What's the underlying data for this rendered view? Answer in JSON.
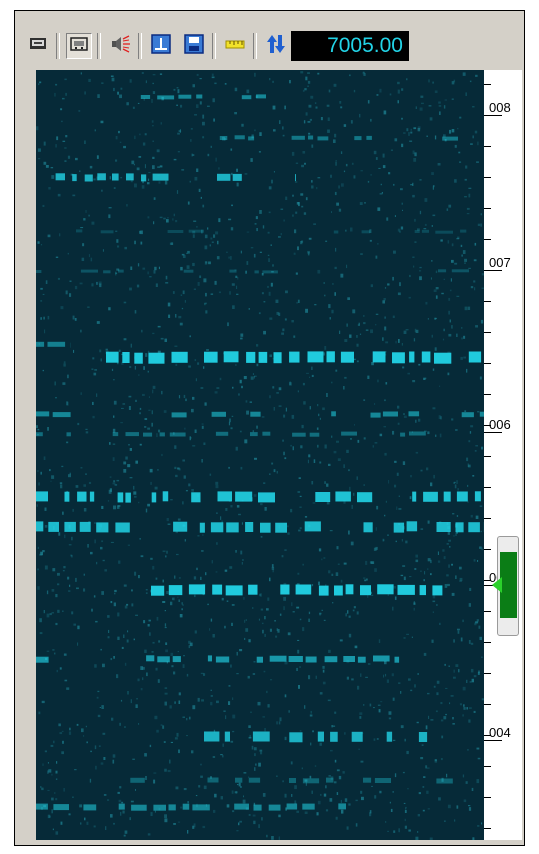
{
  "toolbar": {
    "buttons": [
      {
        "icon": "monitor-icon"
      },
      {
        "icon": "display-panel-icon",
        "pressed": true
      },
      {
        "icon": "speaker-noise-icon"
      },
      {
        "icon": "tuning-icon"
      },
      {
        "icon": "save-disk-icon"
      },
      {
        "icon": "ruler-icon"
      },
      {
        "icon": "up-down-arrows-icon"
      }
    ],
    "frequency": "7005.00"
  },
  "scale": {
    "labels": [
      "008",
      "007",
      "006",
      "005",
      "004"
    ]
  },
  "colors": {
    "waterfall_bg": "#062a38",
    "signal": "#22d3e6",
    "noise": "#1e8596",
    "frequency_text": "#22d3e6",
    "marker": "#0b7d16"
  }
}
